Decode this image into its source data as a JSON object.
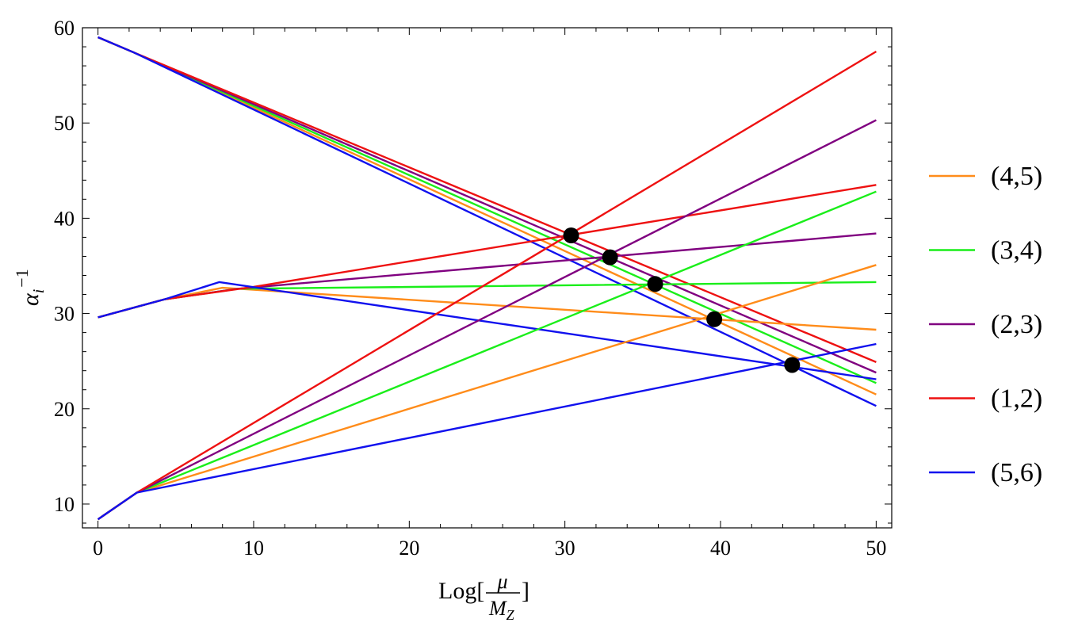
{
  "chart_data": {
    "type": "line",
    "title": "",
    "xlabel": {
      "func": "Log[",
      "num": "μ",
      "den": "M",
      "den_sub": "Z",
      "close": "]"
    },
    "ylabel": {
      "base": "α",
      "sub": "i",
      "sup": "−1"
    },
    "xlim": [
      -1,
      51
    ],
    "ylim": [
      7.5,
      60
    ],
    "xticks": [
      0,
      10,
      20,
      30,
      40,
      50
    ],
    "yticks": [
      10,
      20,
      30,
      40,
      50,
      60
    ],
    "grid": false,
    "legend_position": "right",
    "colors": {
      "(4,5)": "#ff8c1a",
      "(3,4)": "#1aee1a",
      "(2,3)": "#800080",
      "(1,2)": "#ee1111",
      "(5,6)": "#1111ee"
    },
    "legend": [
      "(4,5)",
      "(3,4)",
      "(2,3)",
      "(1,2)",
      "(5,6)"
    ],
    "series": [
      {
        "name": "(4,5)",
        "curve": "alpha1",
        "x": [
          0,
          2.3,
          50
        ],
        "y": [
          59,
          57.4,
          21.5
        ]
      },
      {
        "name": "(3,4)",
        "curve": "alpha1",
        "x": [
          0,
          2.3,
          50
        ],
        "y": [
          59,
          57.4,
          22.7
        ]
      },
      {
        "name": "(2,3)",
        "curve": "alpha1",
        "x": [
          0,
          2.3,
          50
        ],
        "y": [
          59,
          57.4,
          23.8
        ]
      },
      {
        "name": "(1,2)",
        "curve": "alpha1",
        "x": [
          0,
          2.3,
          50
        ],
        "y": [
          59,
          57.4,
          24.9
        ]
      },
      {
        "name": "(5,6)",
        "curve": "alpha1",
        "x": [
          0,
          2.3,
          50
        ],
        "y": [
          59,
          57.4,
          20.3
        ]
      },
      {
        "name": "(4,5)",
        "curve": "alpha2",
        "x": [
          0,
          4.3,
          8,
          50
        ],
        "y": [
          29.6,
          31.5,
          32.7,
          28.3
        ]
      },
      {
        "name": "(3,4)",
        "curve": "alpha2",
        "x": [
          0,
          4.3,
          9,
          50
        ],
        "y": [
          29.6,
          31.5,
          32.6,
          33.3
        ]
      },
      {
        "name": "(2,3)",
        "curve": "alpha2",
        "x": [
          0,
          4.3,
          9,
          50
        ],
        "y": [
          29.6,
          31.5,
          32.6,
          38.4
        ]
      },
      {
        "name": "(1,2)",
        "curve": "alpha2",
        "x": [
          0,
          4.3,
          10,
          50
        ],
        "y": [
          29.6,
          31.5,
          32.8,
          43.5
        ]
      },
      {
        "name": "(5,6)",
        "curve": "alpha2",
        "x": [
          0,
          4.3,
          7.8,
          50
        ],
        "y": [
          29.6,
          31.5,
          33.3,
          23.1
        ]
      },
      {
        "name": "(4,5)",
        "curve": "alpha3",
        "x": [
          0,
          2.5,
          50
        ],
        "y": [
          8.4,
          11.2,
          35.1
        ]
      },
      {
        "name": "(3,4)",
        "curve": "alpha3",
        "x": [
          0,
          2.5,
          50
        ],
        "y": [
          8.4,
          11.2,
          42.8
        ]
      },
      {
        "name": "(2,3)",
        "curve": "alpha3",
        "x": [
          0,
          2.5,
          50
        ],
        "y": [
          8.4,
          11.2,
          50.3
        ]
      },
      {
        "name": "(1,2)",
        "curve": "alpha3",
        "x": [
          0,
          2.5,
          50
        ],
        "y": [
          8.4,
          11.2,
          57.5
        ]
      },
      {
        "name": "(5,6)",
        "curve": "alpha3",
        "x": [
          0,
          2.5,
          50
        ],
        "y": [
          8.4,
          11.2,
          26.8
        ]
      }
    ],
    "unification_points": [
      {
        "name": "(1,2)",
        "x": 30.4,
        "y": 38.2
      },
      {
        "name": "(2,3)",
        "x": 32.9,
        "y": 35.9
      },
      {
        "name": "(3,4)",
        "x": 35.8,
        "y": 33.1
      },
      {
        "name": "(4,5)",
        "x": 39.6,
        "y": 29.4
      },
      {
        "name": "(5,6)",
        "x": 44.6,
        "y": 24.6
      }
    ]
  }
}
